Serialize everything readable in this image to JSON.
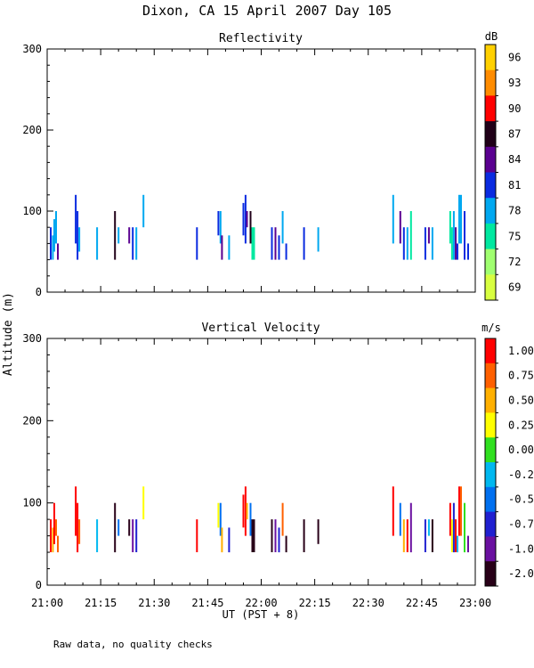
{
  "figure": {
    "title": "Dixon, CA 15 April 2007  Day 105",
    "ylabel": "Altitude (m)",
    "xlabel": "UT  (PST + 8)",
    "note": "Raw data, no quality checks"
  },
  "chart_data": [
    {
      "type": "scatter",
      "title": "Reflectivity",
      "xlabel": "UT  (PST + 8)",
      "ylabel": "Altitude (m)",
      "xlim": [
        "21:00",
        "23:00"
      ],
      "x_tick_minutes": [
        0,
        15,
        30,
        45,
        60,
        75,
        90,
        105,
        120
      ],
      "x_tick_labels": [
        "21:00",
        "21:15",
        "21:30",
        "21:45",
        "22:00",
        "22:15",
        "22:30",
        "22:45",
        "23:00"
      ],
      "ylim": [
        0,
        300
      ],
      "y_ticks": [
        0,
        100,
        200,
        300
      ],
      "colorbar": {
        "unit": "dB",
        "labels": [
          "96",
          "93",
          "90",
          "87",
          "84",
          "81",
          "78",
          "75",
          "72",
          "69"
        ],
        "colors": [
          "#ffd000",
          "#ff8c00",
          "#ff0000",
          "#200018",
          "#5a0090",
          "#0a2be0",
          "#00a8f0",
          "#00e8a0",
          "#a0ff70",
          "#d8ff40"
        ]
      },
      "note": "Echoes are short vertical streaks between ~40 and ~120 m altitude; values approximate (minute, altitude bottom, altitude top, colour class index into colorbar.colors).",
      "streaks": [
        [
          1,
          40,
          80,
          5
        ],
        [
          1.6,
          40,
          70,
          6
        ],
        [
          2,
          50,
          90,
          6
        ],
        [
          2.5,
          60,
          100,
          6
        ],
        [
          3,
          40,
          60,
          4
        ],
        [
          8,
          60,
          120,
          5
        ],
        [
          8.5,
          40,
          100,
          5
        ],
        [
          9,
          50,
          80,
          6
        ],
        [
          14,
          40,
          80,
          6
        ],
        [
          19,
          40,
          100,
          3
        ],
        [
          20,
          60,
          80,
          6
        ],
        [
          23,
          60,
          80,
          4
        ],
        [
          24,
          40,
          80,
          5
        ],
        [
          25,
          40,
          80,
          6
        ],
        [
          27,
          80,
          120,
          6
        ],
        [
          42,
          40,
          80,
          5
        ],
        [
          48,
          70,
          100,
          5
        ],
        [
          48.6,
          60,
          100,
          6
        ],
        [
          49,
          40,
          70,
          4
        ],
        [
          51,
          40,
          70,
          6
        ],
        [
          55,
          70,
          110,
          5
        ],
        [
          55.6,
          60,
          120,
          5
        ],
        [
          56,
          80,
          100,
          4
        ],
        [
          57,
          60,
          100,
          3
        ],
        [
          57.5,
          40,
          80,
          7
        ],
        [
          58,
          40,
          80,
          7
        ],
        [
          63,
          40,
          80,
          5
        ],
        [
          64,
          40,
          80,
          4
        ],
        [
          65,
          40,
          70,
          5
        ],
        [
          66,
          60,
          100,
          6
        ],
        [
          67,
          40,
          60,
          5
        ],
        [
          72,
          40,
          80,
          5
        ],
        [
          76,
          50,
          80,
          6
        ],
        [
          97,
          60,
          120,
          6
        ],
        [
          99,
          60,
          100,
          4
        ],
        [
          100,
          40,
          80,
          5
        ],
        [
          101,
          40,
          80,
          6
        ],
        [
          102,
          40,
          100,
          7
        ],
        [
          106,
          40,
          80,
          5
        ],
        [
          107,
          60,
          80,
          4
        ],
        [
          108,
          40,
          80,
          6
        ],
        [
          113,
          60,
          100,
          7
        ],
        [
          113.5,
          40,
          80,
          7
        ],
        [
          114,
          40,
          100,
          6
        ],
        [
          114.5,
          40,
          80,
          4
        ],
        [
          115,
          40,
          60,
          5
        ],
        [
          115.5,
          60,
          120,
          6
        ],
        [
          116,
          60,
          120,
          6
        ],
        [
          117,
          40,
          100,
          5
        ],
        [
          118,
          40,
          60,
          5
        ]
      ]
    },
    {
      "type": "scatter",
      "title": "Vertical Velocity",
      "xlabel": "UT  (PST + 8)",
      "ylabel": "Altitude (m)",
      "xlim": [
        "21:00",
        "23:00"
      ],
      "x_tick_minutes": [
        0,
        15,
        30,
        45,
        60,
        75,
        90,
        105,
        120
      ],
      "x_tick_labels": [
        "21:00",
        "21:15",
        "21:30",
        "21:45",
        "22:00",
        "22:15",
        "22:30",
        "22:45",
        "23:00"
      ],
      "ylim": [
        0,
        300
      ],
      "y_ticks": [
        0,
        100,
        200,
        300
      ],
      "colorbar": {
        "unit": "m/s",
        "labels": [
          "1.00",
          "0.75",
          "0.50",
          "0.25",
          "0.00",
          "-0.25",
          "-0.50",
          "-0.75",
          "-1.00",
          "-2.00"
        ],
        "colors": [
          "#ff0000",
          "#ff6000",
          "#ffb000",
          "#ffff00",
          "#30e020",
          "#00b8f0",
          "#0070f0",
          "#2020d0",
          "#6a10a0",
          "#280018"
        ]
      },
      "note": "Values approximate (minute, altitude bottom, altitude top, colour class index into colorbar.colors).",
      "streaks": [
        [
          1,
          40,
          80,
          0
        ],
        [
          1.6,
          40,
          70,
          2
        ],
        [
          2,
          50,
          100,
          0
        ],
        [
          2.5,
          60,
          80,
          1
        ],
        [
          3,
          40,
          60,
          1
        ],
        [
          8,
          60,
          120,
          0
        ],
        [
          8.5,
          40,
          100,
          0
        ],
        [
          9,
          50,
          80,
          1
        ],
        [
          14,
          40,
          80,
          5
        ],
        [
          19,
          40,
          100,
          9
        ],
        [
          20,
          60,
          80,
          6
        ],
        [
          23,
          60,
          80,
          9
        ],
        [
          24,
          40,
          80,
          8
        ],
        [
          25,
          40,
          80,
          7
        ],
        [
          27,
          80,
          120,
          3
        ],
        [
          42,
          40,
          80,
          0
        ],
        [
          48,
          70,
          100,
          3
        ],
        [
          48.6,
          60,
          100,
          6
        ],
        [
          49,
          40,
          70,
          2
        ],
        [
          51,
          40,
          70,
          7
        ],
        [
          55,
          70,
          110,
          0
        ],
        [
          55.6,
          60,
          120,
          0
        ],
        [
          56,
          80,
          100,
          2
        ],
        [
          57,
          60,
          100,
          6
        ],
        [
          57.5,
          40,
          80,
          9
        ],
        [
          58,
          40,
          80,
          9
        ],
        [
          63,
          40,
          80,
          9
        ],
        [
          64,
          40,
          80,
          8
        ],
        [
          65,
          40,
          70,
          7
        ],
        [
          66,
          60,
          100,
          1
        ],
        [
          67,
          40,
          60,
          9
        ],
        [
          72,
          40,
          80,
          9
        ],
        [
          76,
          50,
          80,
          9
        ],
        [
          97,
          60,
          120,
          0
        ],
        [
          99,
          60,
          100,
          6
        ],
        [
          100,
          40,
          80,
          2
        ],
        [
          101,
          40,
          80,
          0
        ],
        [
          102,
          40,
          100,
          8
        ],
        [
          106,
          40,
          80,
          7
        ],
        [
          107,
          60,
          80,
          5
        ],
        [
          108,
          40,
          80,
          9
        ],
        [
          113,
          60,
          100,
          0
        ],
        [
          113.5,
          40,
          80,
          3
        ],
        [
          114,
          40,
          100,
          7
        ],
        [
          114.5,
          40,
          80,
          0
        ],
        [
          115,
          40,
          60,
          5
        ],
        [
          115.5,
          60,
          120,
          0
        ],
        [
          116,
          60,
          120,
          1
        ],
        [
          117,
          40,
          100,
          4
        ],
        [
          118,
          40,
          60,
          8
        ]
      ]
    }
  ]
}
